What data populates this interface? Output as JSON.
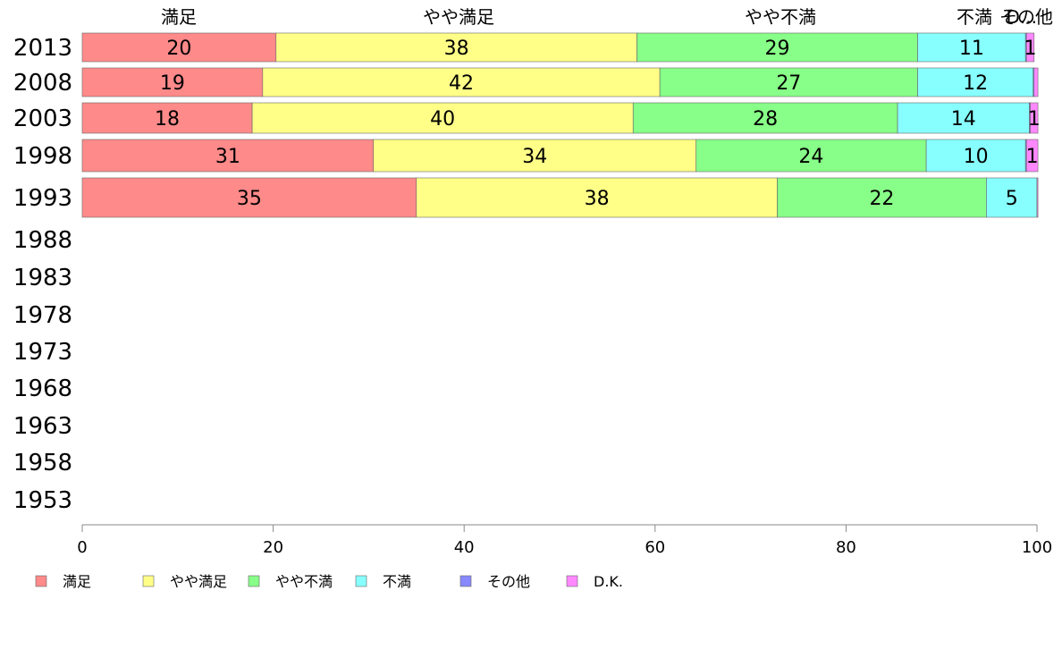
{
  "chart_data": {
    "type": "bar",
    "orientation": "horizontal",
    "stacked": true,
    "categories": [
      "2013",
      "2008",
      "2003",
      "1998",
      "1993",
      "1988",
      "1983",
      "1978",
      "1973",
      "1968",
      "1963",
      "1958",
      "1953"
    ],
    "series": [
      {
        "name": "満足",
        "color": "#ff8a8a",
        "values": [
          20.3,
          18.9,
          17.8,
          30.5,
          35.0,
          null,
          null,
          null,
          null,
          null,
          null,
          null,
          null
        ],
        "labels": [
          "20",
          "19",
          "18",
          "31",
          "35",
          "",
          "",
          "",
          "",
          "",
          "",
          "",
          ""
        ]
      },
      {
        "name": "やや満足",
        "color": "#ffff88",
        "values": [
          37.8,
          41.6,
          39.9,
          33.8,
          37.8,
          null,
          null,
          null,
          null,
          null,
          null,
          null,
          null
        ],
        "labels": [
          "38",
          "42",
          "40",
          "34",
          "38",
          "",
          "",
          "",
          "",
          "",
          "",
          "",
          ""
        ]
      },
      {
        "name": "やや不満",
        "color": "#88ff88",
        "values": [
          29.4,
          27.0,
          27.7,
          24.1,
          21.9,
          null,
          null,
          null,
          null,
          null,
          null,
          null,
          null
        ],
        "labels": [
          "29",
          "27",
          "28",
          "24",
          "22",
          "",
          "",
          "",
          "",
          "",
          "",
          "",
          ""
        ]
      },
      {
        "name": "不満",
        "color": "#88ffff",
        "values": [
          11.3,
          12.1,
          13.8,
          10.4,
          5.3,
          null,
          null,
          null,
          null,
          null,
          null,
          null,
          null
        ],
        "labels": [
          "11",
          "12",
          "14",
          "10",
          "5",
          "",
          "",
          "",
          "",
          "",
          "",
          "",
          ""
        ]
      },
      {
        "name": "その他",
        "color": "#8888ff",
        "values": [
          0.1,
          0.1,
          0.1,
          0.1,
          0.0,
          null,
          null,
          null,
          null,
          null,
          null,
          null,
          null
        ],
        "labels": [
          "",
          "",
          "",
          "",
          "",
          "",
          "",
          "",
          "",
          "",
          "",
          "",
          ""
        ]
      },
      {
        "name": "D.K.",
        "color": "#ff88ff",
        "values": [
          0.8,
          0.4,
          0.8,
          1.2,
          0.1,
          null,
          null,
          null,
          null,
          null,
          null,
          null,
          null
        ],
        "labels": [
          "1",
          "",
          "1",
          "1",
          "",
          "",
          "",
          "",
          "",
          "",
          "",
          "",
          ""
        ]
      }
    ],
    "top_labels": [
      "満足",
      "やや満足",
      "やや不満",
      "不満",
      "その他",
      "D..."
    ],
    "xlim": [
      0,
      100
    ],
    "xticks": [
      0,
      20,
      40,
      60,
      80,
      100
    ],
    "legend_placement": "bottom-left",
    "grid": false
  }
}
